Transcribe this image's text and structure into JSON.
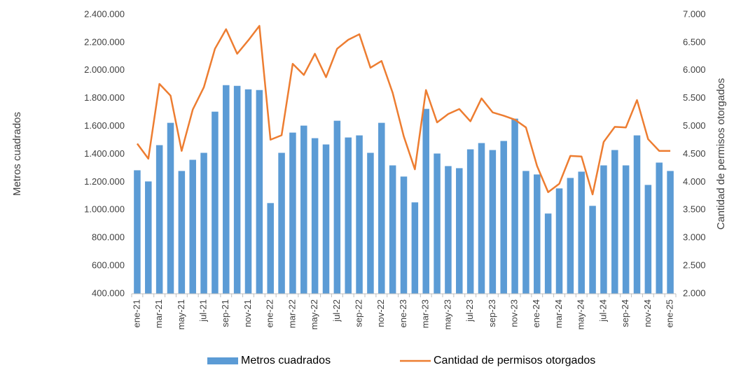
{
  "chart_data": {
    "type": "bar-line",
    "y_label": "Metros cuadrados",
    "y2_label": "Cantidad de permisos otorgados",
    "categories": [
      "ene-21",
      null,
      "mar-21",
      null,
      "may-21",
      null,
      "jul-21",
      null,
      "sep-21",
      null,
      "nov-21",
      null,
      "ene-22",
      null,
      "mar-22",
      null,
      "may-22",
      null,
      "jul-22",
      null,
      "sep-22",
      null,
      "nov-22",
      null,
      "ene-23",
      null,
      "mar-23",
      null,
      "may-23",
      null,
      "jul-23",
      null,
      "sep-23",
      null,
      "nov-23",
      null,
      "ene-24",
      null,
      "mar-24",
      null,
      "may-24",
      null,
      "jul-24",
      null,
      "sep-24",
      null,
      "nov-24",
      null,
      "ene-25"
    ],
    "series": [
      {
        "name": "Metros cuadrados",
        "color": "#5b9bd5",
        "kind": "bar",
        "values": [
          1285000,
          1205000,
          1465000,
          1625000,
          1280000,
          1360000,
          1410000,
          1705000,
          1895000,
          1890000,
          1865000,
          1860000,
          1050000,
          1410000,
          1555000,
          1605000,
          1515000,
          1470000,
          1640000,
          1520000,
          1535000,
          1410000,
          1625000,
          1320000,
          1240000,
          1055000,
          1725000,
          1405000,
          1315000,
          1300000,
          1435000,
          1480000,
          1430000,
          1495000,
          1655000,
          1280000,
          1255000,
          975000,
          1155000,
          1230000,
          1275000,
          1030000,
          1320000,
          1430000,
          1320000,
          1535000,
          1180000,
          1340000,
          1280000
        ]
      },
      {
        "name": "Cantidad de permisos otorgados",
        "color": "#ed7d31",
        "kind": "line",
        "axis": "y2",
        "values": [
          4690,
          4420,
          5760,
          5550,
          4560,
          5300,
          5700,
          6390,
          6740,
          6300,
          6540,
          6800,
          4760,
          4840,
          6120,
          5920,
          6300,
          5880,
          6390,
          6550,
          6650,
          6050,
          6170,
          5600,
          4820,
          4230,
          5650,
          5070,
          5220,
          5310,
          5090,
          5500,
          5250,
          5190,
          5120,
          4980,
          4290,
          3820,
          3970,
          4470,
          4460,
          3780,
          4720,
          4990,
          4980,
          5470,
          4770,
          4560,
          4560
        ]
      }
    ],
    "ylim": [
      400000,
      2400000
    ],
    "yticks": [
      {
        "value": 400000,
        "label": "400.000"
      },
      {
        "value": 600000,
        "label": "600.000"
      },
      {
        "value": 800000,
        "label": "800.000"
      },
      {
        "value": 1000000,
        "label": "1.000.000"
      },
      {
        "value": 1200000,
        "label": "1.200.000"
      },
      {
        "value": 1400000,
        "label": "1.400.000"
      },
      {
        "value": 1600000,
        "label": "1.600.000"
      },
      {
        "value": 1800000,
        "label": "1.800.000"
      },
      {
        "value": 2000000,
        "label": "2.000.000"
      },
      {
        "value": 2200000,
        "label": "2.200.000"
      },
      {
        "value": 2400000,
        "label": "2.400.000"
      }
    ],
    "y2lim": [
      2000,
      7000
    ],
    "y2ticks": [
      {
        "value": 2000,
        "label": "2.000"
      },
      {
        "value": 2500,
        "label": "2.500"
      },
      {
        "value": 3000,
        "label": "3.000"
      },
      {
        "value": 3500,
        "label": "3.500"
      },
      {
        "value": 4000,
        "label": "4.000"
      },
      {
        "value": 4500,
        "label": "4.500"
      },
      {
        "value": 5000,
        "label": "5.000"
      },
      {
        "value": 5500,
        "label": "5.500"
      },
      {
        "value": 6000,
        "label": "6.000"
      },
      {
        "value": 6500,
        "label": "6.500"
      },
      {
        "value": 7000,
        "label": "7.000"
      }
    ],
    "grid": false,
    "legend": "bottom"
  }
}
